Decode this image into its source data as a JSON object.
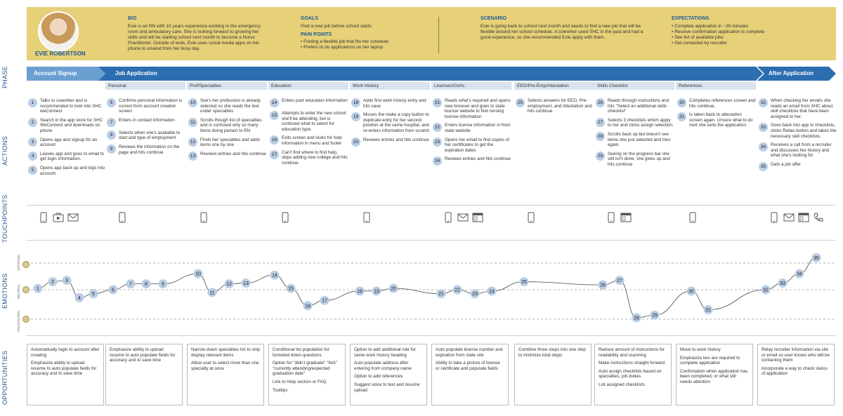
{
  "persona": {
    "name": "EVIE ROBERTSON",
    "bio_heading": "BIO",
    "bio": "Evie is an RN with 10 years experience working in the emergency room and ambulatory care. She is looking forward to growing her skills and will be starting school next month to become a Nurse Practitioner. Outside of work, Evie uses social media apps on her phone to unwind from her busy day.",
    "goals_heading": "GOALS",
    "goals": "Find a new job before school starts",
    "pain_heading": "PAIN POINTS",
    "pain_points": [
      "Finding a flexible job that fits her schedule",
      "Prefers to do applications on her laptop"
    ],
    "scenario_heading": "SCENARIO",
    "scenario": "Evie is going back to school next month and needs to find a new job that will be flexible around her school schedule. A coworker used SHC in the past and had a good experience, so she recommended Evie apply with them.",
    "expectations_heading": "EXPECTATIONS",
    "expectations": [
      "Complete application in ~30 minutes",
      "Receive confirmation application is complete",
      "See list of available jobs",
      "Get contacted by recruiter"
    ]
  },
  "row_labels": {
    "phase": "PHASE",
    "actions": "ACTIONS",
    "touchpoints": "TOUCHPOINTS",
    "emotions": "EMOTIONS",
    "opportunities": "OPPORTUNITIES"
  },
  "phases": [
    "Account Signup",
    "Job Application",
    "After Application"
  ],
  "subphases": [
    "Personal",
    "Prof/Specialties",
    "Education",
    "Work History",
    "Licenses/Certs",
    "EEO/Pre-Emp/Attestation",
    "Skills Checklist",
    "References"
  ],
  "actions": [
    [
      {
        "n": "1",
        "t": "Talks to coworker and is recommended to look into SHC weConnect"
      },
      {
        "n": "2",
        "t": "Search in the app store for SHC WeConnect and downloads on phone"
      },
      {
        "n": "3",
        "t": "Opens app and signup for an account"
      },
      {
        "n": "4",
        "t": "Leaves app and goes to email to get login information."
      },
      {
        "n": "5",
        "t": "Opens app back up and logs into account"
      }
    ],
    [
      {
        "n": "6",
        "t": "Confirms personal information is correct from account creation screen"
      },
      {
        "n": "7",
        "t": "Enters in contact information"
      },
      {
        "n": "8",
        "t": "Selects when she's available to start and type of employment"
      },
      {
        "n": "9",
        "t": "Reviews the information on the page and hits continue"
      }
    ],
    [
      {
        "n": "10",
        "t": "See's her profession is already selected so she reads the text under specialties"
      },
      {
        "n": "11",
        "t": "Scrolls though list of specialties and is confused why so many items doing pertain to RN"
      },
      {
        "n": "12",
        "t": "Finds her specialties and adds items one by one"
      },
      {
        "n": "13",
        "t": "Reviews entries and hits continue"
      }
    ],
    [
      {
        "n": "14",
        "t": "Enters past education information"
      },
      {
        "n": "15",
        "t": "Attempts to enter the new school she'll be attending, but is confused what to select for education type."
      },
      {
        "n": "16",
        "t": "Exits screen and looks for help information in menu and footer"
      },
      {
        "n": "17",
        "t": "Can't find where to find help, skips adding new college and hits continue"
      }
    ],
    [
      {
        "n": "18",
        "t": "Adds first work history entry and hits save"
      },
      {
        "n": "19",
        "t": "Misses the make a copy button to duplicate entry for her second position at the same hospital, and re-enters information from scratch"
      },
      {
        "n": "20",
        "t": "Reviews entries and hits continue"
      }
    ],
    [
      {
        "n": "21",
        "t": "Reads what's required and opens new browser and goes to state license website to find nursing license information"
      },
      {
        "n": "22",
        "t": "Enters license information in from state website"
      },
      {
        "n": "23",
        "t": "Opens her email to find copies of her certificates to get the expiration dates"
      },
      {
        "n": "24",
        "t": "Reviews entries and hits continue"
      }
    ],
    [
      {
        "n": "25",
        "t": "Selects answers for EEO, Pre-employment, and Attestation and hits continue"
      }
    ],
    [
      {
        "n": "26",
        "t": "Reads through instructions and hits \"Select an additional skills checklist\""
      },
      {
        "n": "27",
        "t": "Selects 3 checklists which apply to her and clicks assign selection."
      },
      {
        "n": "28",
        "t": "Scrolls back up but doesn't see items she just selected and tries again."
      },
      {
        "n": "29",
        "t": "Seeing on the progress bar she still isn't done, she gives up and hits continue"
      }
    ],
    [
      {
        "n": "30",
        "t": "Completes references screen and hits continue."
      },
      {
        "n": "31",
        "t": "Is taken back to attestation screen again. Unsure what to do next she exits the application."
      }
    ],
    [
      {
        "n": "32",
        "t": "When checking her emails she reads an email from SHC about skill checklists that have been assigned to her."
      },
      {
        "n": "33",
        "t": "Goes back into app to checklists, clicks Relias button and takes the necessary skill checklists."
      },
      {
        "n": "34",
        "t": "Receives a call from a recruiter and discusses her history and what she's looking for."
      },
      {
        "n": "35",
        "t": "Gets a job offer"
      }
    ]
  ],
  "touchpoints": [
    [
      "phone-icon",
      "video-icon",
      "mail-icon"
    ],
    [
      "phone-icon"
    ],
    [
      "phone-icon"
    ],
    [
      "phone-icon"
    ],
    [
      "phone-icon"
    ],
    [
      "phone-icon",
      "mail-icon",
      "browser-icon"
    ],
    [
      "phone-icon"
    ],
    [
      "phone-icon",
      "browser-icon"
    ],
    [
      "phone-icon"
    ],
    [
      "phone-icon",
      "mail-icon",
      "browser-icon",
      "call-icon"
    ]
  ],
  "emotion_labels": {
    "satisfied": "SATISFIED",
    "neutral": "NEUTRAL",
    "frustrated": "FRUSTRATED"
  },
  "emotion_steps": [
    "1",
    "2",
    "3",
    "4",
    "5",
    "6",
    "7",
    "8",
    "9",
    "10",
    "11",
    "12",
    "13",
    "14",
    "15",
    "16",
    "17",
    "18",
    "19",
    "20",
    "21",
    "22",
    "23",
    "24",
    "25",
    "26",
    "27",
    "28",
    "29",
    "30",
    "31",
    "32",
    "33",
    "34",
    "35"
  ],
  "emotion_levels": [
    0.05,
    0.3,
    0.35,
    -0.3,
    -0.15,
    0.0,
    0.22,
    0.22,
    0.22,
    0.6,
    -0.1,
    0.22,
    0.25,
    0.55,
    0.05,
    -0.6,
    -0.4,
    -0.05,
    -0.05,
    0.05,
    -0.15,
    0.0,
    -0.15,
    -0.05,
    0.3,
    0.18,
    0.35,
    -1.05,
    -0.95,
    -0.05,
    -0.75,
    0.0,
    0.25,
    0.6,
    1.2
  ],
  "opportunities": [
    [
      "Automatically login to account after creating",
      "Emphasize ability to upload resume to auto populate fields for accuracy and to save time"
    ],
    [
      "Emphasize ability to upload resume to auto populate fields for accuracy and to save time"
    ],
    [
      "Narrow down specialties list to only display relevant items",
      "Allow user to select more than one specialty at once"
    ],
    [
      "Conditional list population for funneled down questions",
      "Option for \"didn't graduate\" \"N/A\" \"currently attending/expected graduation date\"",
      "Link to Help section or FAQ",
      "Tooltips"
    ],
    [
      "Option to add additional role for same work history heading",
      "Auto populate address after entering from company name",
      "Option to add references",
      "Suggest voice to text and resume upload"
    ],
    [
      "Auto populate license number and expiration from state site",
      "Ability to take a picture of license or certificate and populate fields"
    ],
    [
      "Combine three steps into one step to minimize total steps"
    ],
    [
      "Reduce amount of instructions for readability and scanning",
      "Make instructions straight forward",
      "Auto assign checklists based on specialties, job duties.",
      "List assigned checklists"
    ],
    [
      "Move to work history",
      "Emphasize two are required to complete application",
      "Confirmation when application has been completed, or what still needs attention"
    ],
    [
      "Relay recruiter information via site or email so user knows who will be contacting them",
      "Incorporate a way to check status of application"
    ]
  ]
}
